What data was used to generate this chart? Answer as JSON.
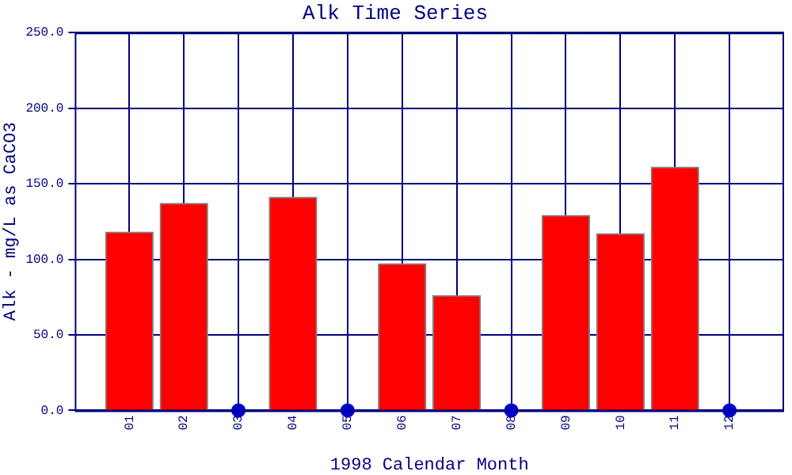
{
  "chart_data": {
    "type": "bar",
    "title": "Alk Time Series",
    "xlabel": "1998 Calendar Month",
    "ylabel": "Alk - mg/L as CaCO3",
    "categories": [
      "01",
      "02",
      "03",
      "04",
      "05",
      "06",
      "07",
      "08",
      "09",
      "10",
      "11",
      "12"
    ],
    "series": [
      {
        "color": "#ff0000",
        "values": [
          118,
          137,
          null,
          141,
          null,
          97,
          76,
          null,
          129,
          117,
          161,
          null
        ]
      },
      {
        "type": "scatter",
        "color": "#0000cc",
        "x": [
          "03",
          "05",
          "08",
          "12"
        ],
        "values": [
          0,
          0,
          0,
          0
        ]
      }
    ],
    "ylim": [
      0,
      250
    ],
    "yticks": [
      {
        "value": 0,
        "label": "0.0"
      },
      {
        "value": 50,
        "label": "50.0"
      },
      {
        "value": 100,
        "label": "100.0"
      },
      {
        "value": 150,
        "label": "150.0"
      },
      {
        "value": 200,
        "label": "200.0"
      },
      {
        "value": 250,
        "label": "250.0"
      }
    ],
    "grid": true,
    "legend": false,
    "marker": "circle"
  }
}
